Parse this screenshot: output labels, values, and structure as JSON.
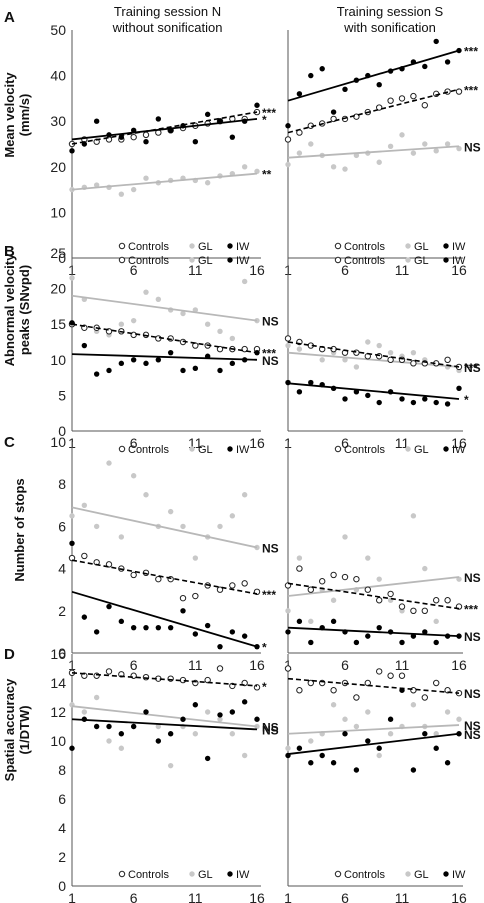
{
  "session_titles": {
    "N": [
      "Training session N",
      "without sonification"
    ],
    "S": [
      "Training session S",
      "with sonification"
    ]
  },
  "colors": {
    "Controls": "#222222",
    "GL": "#bdbdbd",
    "IW": "#000000"
  },
  "chart_data": [
    {
      "panel": "A",
      "session": "N",
      "type": "scatter",
      "ylabel": "Mean velocity\n(mm/s)",
      "ylim": [
        0,
        50
      ],
      "yticks": [
        0,
        10,
        20,
        30,
        40,
        50
      ],
      "xticks": [
        1,
        6,
        11,
        16
      ],
      "legend": [
        "Controls",
        "GL",
        "IW"
      ],
      "legend_pos": "bottom",
      "series": [
        {
          "name": "Controls",
          "trend": [
            25.0,
            32.0
          ],
          "sig": "***",
          "values": [
            25,
            26,
            25.5,
            26,
            26,
            26.5,
            27,
            27.5,
            28,
            28.5,
            29,
            29.5,
            30,
            30.5,
            30.5,
            32
          ]
        },
        {
          "name": "IW",
          "trend": [
            26.0,
            30.5
          ],
          "sig": "*",
          "values": [
            23.5,
            25,
            30,
            27,
            26.5,
            28,
            25.5,
            30.5,
            28,
            29,
            25.5,
            31.5,
            30,
            26.5,
            30,
            33.5
          ]
        },
        {
          "name": "GL",
          "trend": [
            15.0,
            18.5
          ],
          "sig": "**",
          "values": [
            15,
            15.5,
            16,
            15.5,
            14,
            15,
            17.5,
            16.5,
            17,
            17.5,
            17,
            16.5,
            18,
            18.5,
            20,
            19
          ]
        }
      ]
    },
    {
      "panel": "A",
      "session": "S",
      "type": "scatter",
      "ylim": [
        0,
        50
      ],
      "yticks": [
        0,
        10,
        20,
        30,
        40,
        50
      ],
      "xticks": [
        1,
        6,
        11,
        16
      ],
      "legend": [
        "Controls",
        "GL",
        "IW"
      ],
      "legend_pos": "bottom",
      "series": [
        {
          "name": "IW",
          "trend": [
            34.5,
            45.5
          ],
          "sig": "***",
          "values": [
            29,
            36,
            40,
            41.5,
            32,
            37,
            39,
            40,
            38,
            41,
            41.5,
            43,
            42,
            47.5,
            43,
            45.5
          ]
        },
        {
          "name": "Controls",
          "trend": [
            27.5,
            37.0
          ],
          "sig": "***",
          "values": [
            26,
            27.5,
            29,
            29.5,
            30.5,
            30.5,
            31,
            32,
            33,
            34.5,
            35,
            35.5,
            33.5,
            36,
            36.5,
            36.5
          ]
        },
        {
          "name": "GL",
          "trend": [
            22.0,
            24.5
          ],
          "sig": "NS",
          "values": [
            20.5,
            23,
            25,
            22.5,
            20,
            19.5,
            22.5,
            23,
            21,
            24.5,
            27,
            23,
            25,
            23.5,
            25,
            24
          ]
        }
      ]
    },
    {
      "panel": "B",
      "session": "N",
      "type": "scatter",
      "ylabel": "Abnormal velocity\npeaks (SNvpd)",
      "ylim": [
        0,
        25
      ],
      "yticks": [
        0,
        5,
        10,
        15,
        20,
        25
      ],
      "xticks": [
        1,
        6,
        11,
        16
      ],
      "legend": [
        "Controls",
        "GL",
        "IW"
      ],
      "legend_pos": "top",
      "series": [
        {
          "name": "GL",
          "trend": [
            19.0,
            15.5
          ],
          "sig": "NS",
          "values": [
            21.5,
            18.5,
            14,
            13.5,
            15,
            15.5,
            19.5,
            18.5,
            17,
            16.5,
            17,
            15,
            14,
            13,
            21,
            15.5
          ]
        },
        {
          "name": "Controls",
          "trend": [
            15.0,
            11.0
          ],
          "sig": "***",
          "values": [
            15,
            14.5,
            14.5,
            14,
            14,
            13.5,
            13.5,
            13,
            13,
            12.5,
            12,
            12,
            11.5,
            11.5,
            11.5,
            11.5
          ]
        },
        {
          "name": "IW",
          "trend": [
            10.8,
            10.0
          ],
          "sig": "NS",
          "values": [
            15.2,
            12,
            8,
            8.5,
            9.5,
            10,
            9.5,
            10,
            11,
            8.5,
            8.8,
            10.5,
            8.5,
            9.5,
            10,
            11
          ]
        }
      ]
    },
    {
      "panel": "B",
      "session": "S",
      "type": "scatter",
      "ylim": [
        0,
        25
      ],
      "yticks": [
        0,
        5,
        10,
        15,
        20,
        25
      ],
      "xticks": [
        1,
        6,
        11,
        16
      ],
      "legend": [
        "Controls",
        "GL",
        "IW"
      ],
      "legend_pos": "top",
      "series": [
        {
          "name": "GL",
          "trend": [
            11.0,
            9.0
          ],
          "sig": "NS",
          "values": [
            12,
            11.5,
            12,
            10,
            11,
            10,
            9,
            12.5,
            12,
            11,
            10.5,
            11,
            10,
            9.5,
            9,
            8.5
          ]
        },
        {
          "name": "Controls",
          "trend": [
            12.5,
            9.0
          ],
          "sig": "***",
          "values": [
            13,
            12.5,
            12,
            11.5,
            11.5,
            11,
            11,
            10.5,
            10.5,
            10,
            10,
            9.5,
            9.5,
            9.5,
            10,
            9
          ]
        },
        {
          "name": "IW",
          "trend": [
            6.7,
            4.5
          ],
          "sig": "*",
          "values": [
            6.8,
            5.5,
            6.8,
            6.5,
            6,
            4.5,
            5.5,
            5,
            4,
            5.5,
            4.5,
            4,
            4.5,
            4,
            3.8,
            6
          ]
        }
      ]
    },
    {
      "panel": "C",
      "session": "N",
      "type": "scatter",
      "ylabel": "Number of stops",
      "ylim": [
        0,
        10
      ],
      "yticks": [
        0,
        2,
        4,
        6,
        8,
        10
      ],
      "xticks": [
        1,
        6,
        11,
        16
      ],
      "legend": [
        "Controls",
        "GL",
        "IW"
      ],
      "legend_pos": "top",
      "series": [
        {
          "name": "GL",
          "trend": [
            6.9,
            5.0
          ],
          "sig": "NS",
          "values": [
            6.5,
            7,
            6,
            9,
            5.5,
            8.4,
            7.5,
            6,
            6.7,
            6,
            4.5,
            5.5,
            6,
            6.5,
            7.5,
            5
          ]
        },
        {
          "name": "Controls",
          "trend": [
            4.4,
            2.8
          ],
          "sig": "***",
          "values": [
            4.5,
            4.6,
            4.3,
            4.2,
            4,
            3.7,
            3.8,
            3.5,
            3.5,
            2.6,
            2.7,
            3.2,
            3,
            3.2,
            3.3,
            2.9
          ]
        },
        {
          "name": "IW",
          "trend": [
            2.9,
            0.3
          ],
          "sig": "*",
          "values": [
            5.2,
            1.7,
            1,
            2.2,
            1.5,
            1.2,
            1.2,
            1.2,
            1.2,
            2,
            0.9,
            1.3,
            0.3,
            1,
            0.8,
            0.3
          ]
        }
      ]
    },
    {
      "panel": "C",
      "session": "S",
      "type": "scatter",
      "ylim": [
        0,
        10
      ],
      "yticks": [
        0,
        2,
        4,
        6,
        8,
        10
      ],
      "xticks": [
        1,
        6,
        11,
        16
      ],
      "legend": [
        "Controls",
        "GL",
        "IW"
      ],
      "legend_pos": "top",
      "series": [
        {
          "name": "GL",
          "trend": [
            2.7,
            3.6
          ],
          "sig": "NS",
          "values": [
            2,
            4.5,
            1.5,
            3,
            2.5,
            5.5,
            3,
            4.5,
            3.5,
            2.5,
            2,
            6.5,
            4,
            1.5,
            2.5,
            3.5
          ]
        },
        {
          "name": "Controls",
          "trend": [
            3.3,
            2.1
          ],
          "sig": "***",
          "values": [
            3.2,
            4,
            3,
            3.4,
            3.7,
            3.6,
            3.5,
            3,
            2.5,
            2.8,
            2.2,
            2,
            2,
            2.5,
            2.5,
            2.2
          ]
        },
        {
          "name": "IW",
          "trend": [
            1.2,
            0.8
          ],
          "sig": "NS",
          "values": [
            1,
            1.5,
            0.5,
            1.2,
            1.5,
            1,
            0.5,
            0.8,
            1.2,
            1,
            0.5,
            0.8,
            1,
            0.5,
            0.8,
            0.8
          ]
        }
      ]
    },
    {
      "panel": "D",
      "session": "N",
      "type": "scatter",
      "ylabel": "Spatial accuracy\n(1/DTW)",
      "ylim": [
        0,
        16
      ],
      "yticks": [
        0,
        2,
        4,
        6,
        8,
        10,
        12,
        14,
        16
      ],
      "xticks": [
        1,
        6,
        11,
        16
      ],
      "legend": [
        "Controls",
        "GL",
        "IW"
      ],
      "legend_pos": "bottom",
      "series": [
        {
          "name": "Controls",
          "trend": [
            14.7,
            13.8
          ],
          "sig": "*",
          "values": [
            14.7,
            14.5,
            14.5,
            14.8,
            14.6,
            14.5,
            14.4,
            14.3,
            14.3,
            14.2,
            14,
            14.2,
            15,
            13.8,
            14,
            13.7
          ]
        },
        {
          "name": "GL",
          "trend": [
            12.4,
            11.0
          ],
          "sig": "NS",
          "values": [
            12.5,
            12,
            13,
            10,
            9.5,
            11,
            12,
            11,
            8.3,
            11,
            10.5,
            12,
            11.5,
            10.5,
            9,
            11
          ]
        },
        {
          "name": "IW",
          "trend": [
            11.5,
            10.8
          ],
          "sig": "NS",
          "values": [
            9.5,
            11.5,
            11,
            11,
            10.5,
            11,
            12,
            10,
            10.5,
            11.5,
            12.5,
            8.8,
            11.8,
            12,
            12.7,
            11.5
          ]
        }
      ]
    },
    {
      "panel": "D",
      "session": "S",
      "type": "scatter",
      "ylim": [
        0,
        16
      ],
      "yticks": [
        0,
        2,
        4,
        6,
        8,
        10,
        12,
        14,
        16
      ],
      "xticks": [
        1,
        6,
        11,
        16
      ],
      "legend": [
        "Controls",
        "GL",
        "IW"
      ],
      "legend_pos": "bottom",
      "series": [
        {
          "name": "Controls",
          "trend": [
            14.3,
            13.3
          ],
          "sig": "NS",
          "values": [
            15,
            13.5,
            14,
            14,
            13.5,
            14,
            13,
            14,
            14.8,
            14.5,
            14.5,
            13.5,
            13,
            14,
            13.5,
            13.3
          ]
        },
        {
          "name": "GL",
          "trend": [
            10.5,
            11.1
          ],
          "sig": "NS",
          "values": [
            9.5,
            9.5,
            10,
            10.5,
            12.5,
            11.5,
            11,
            12,
            9,
            10.5,
            11,
            12.5,
            11,
            10.5,
            12,
            11.5
          ]
        },
        {
          "name": "IW",
          "trend": [
            9.1,
            10.5
          ],
          "sig": "NS",
          "values": [
            9,
            9.5,
            8.5,
            9,
            8.5,
            10.5,
            8,
            10,
            9.5,
            11.5,
            13.5,
            8,
            10.5,
            9.5,
            8.5,
            10.5
          ]
        }
      ]
    }
  ]
}
